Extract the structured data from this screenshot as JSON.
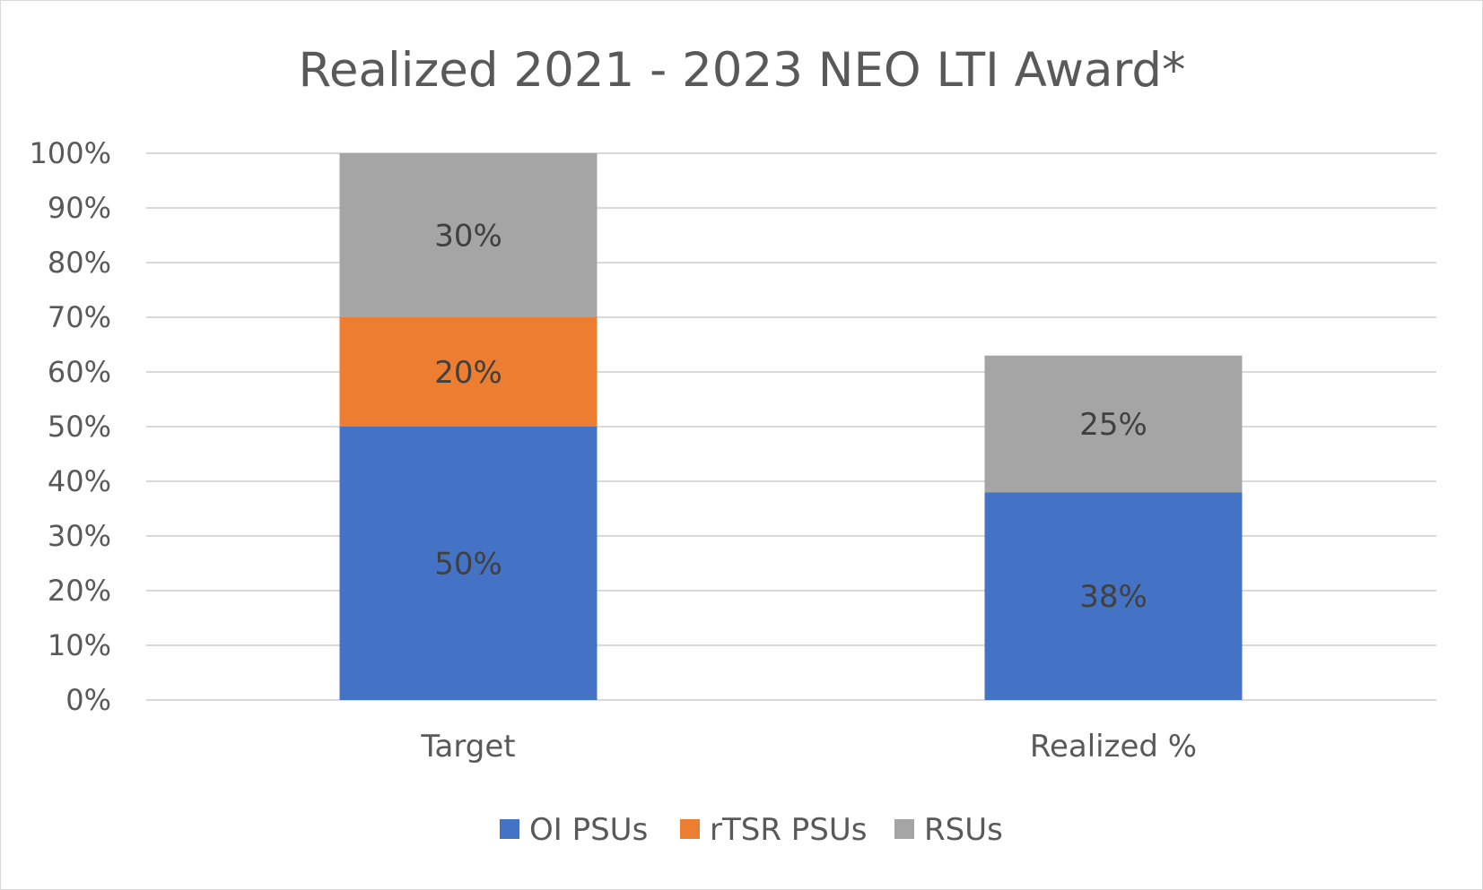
{
  "chart_data": {
    "type": "bar",
    "stacked": true,
    "title": "Realized 2021 - 2023 NEO LTI Award*",
    "xlabel": "",
    "ylabel": "",
    "categories": [
      "Target",
      "Realized %"
    ],
    "series": [
      {
        "name": "OI PSUs",
        "values": [
          50,
          38
        ],
        "labels": [
          "50%",
          "38%"
        ],
        "color": "#4472C4"
      },
      {
        "name": "rTSR PSUs",
        "values": [
          20,
          0
        ],
        "labels": [
          "20%",
          ""
        ],
        "color": "#ED7D31"
      },
      {
        "name": "RSUs",
        "values": [
          30,
          25
        ],
        "labels": [
          "30%",
          "25%"
        ],
        "color": "#A5A5A5"
      }
    ],
    "ylim": [
      0,
      100
    ],
    "y_ticks": [
      "0%",
      "10%",
      "20%",
      "30%",
      "40%",
      "50%",
      "60%",
      "70%",
      "80%",
      "90%",
      "100%"
    ],
    "grid": true,
    "gridline_color": "#D9D9D9",
    "legend_position": "bottom"
  }
}
